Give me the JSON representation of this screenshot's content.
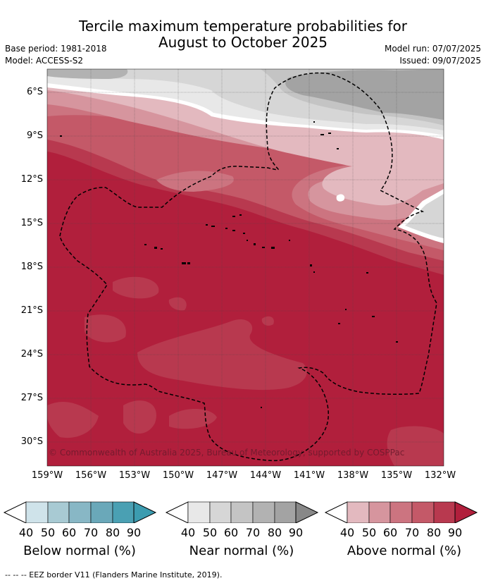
{
  "header": {
    "title_line1": "Tercile maximum temperature probabilities for",
    "title_line2": "August to October 2025",
    "base_period": "Base period: 1981-2018",
    "model": "Model: ACCESS-S2",
    "model_run": "Model run: 07/07/2025",
    "issued": "Issued: 09/07/2025"
  },
  "map": {
    "lat_ticks": [
      "6°S",
      "9°S",
      "12°S",
      "15°S",
      "18°S",
      "21°S",
      "24°S",
      "27°S",
      "30°S"
    ],
    "lon_ticks": [
      "159°W",
      "156°W",
      "153°W",
      "150°W",
      "147°W",
      "144°W",
      "141°W",
      "138°W",
      "135°W",
      "132°W"
    ],
    "copyright": "© Commonwealth of Australia 2025, Bureau of Meteorology, supported by COSPPac"
  },
  "legend": {
    "below": {
      "title": "Below normal (%)",
      "labels": [
        "40",
        "50",
        "60",
        "70",
        "80",
        "90"
      ],
      "colors": [
        "#ffffff",
        "#cfe3ea",
        "#a8cad3",
        "#88b7c5",
        "#6aa8b9",
        "#3c9cb0"
      ]
    },
    "near": {
      "title": "Near normal (%)",
      "labels": [
        "40",
        "50",
        "60",
        "70",
        "80",
        "90"
      ],
      "colors": [
        "#ffffff",
        "#e8e8e8",
        "#d6d6d6",
        "#c4c4c4",
        "#b2b2b2",
        "#a3a3a3",
        "#888888"
      ]
    },
    "above": {
      "title": "Above normal (%)",
      "labels": [
        "40",
        "50",
        "60",
        "70",
        "80",
        "90"
      ],
      "colors": [
        "#ffffff",
        "#e3b9bf",
        "#d6959e",
        "#cc7480",
        "#c45968",
        "#b8394f",
        "#b11f3c"
      ]
    }
  },
  "footnote": "--  --  -- EEZ border V11 (Flanders Marine Institute, 2019)."
}
